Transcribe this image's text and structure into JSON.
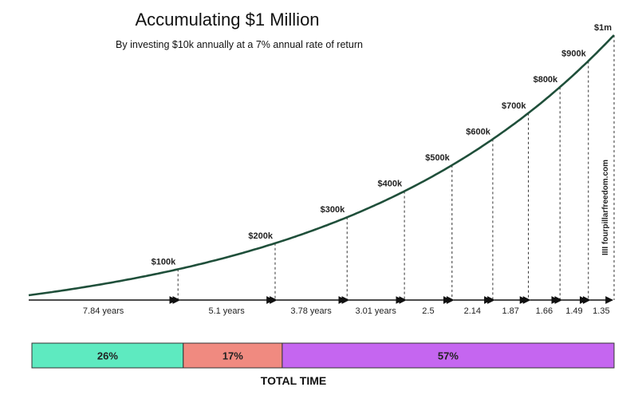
{
  "page": {
    "title": "Accumulating $1 Million",
    "subtitle": "By investing $10k annually at a 7% annual rate of return",
    "watermark": "IIII fourpillarfreedom.com"
  },
  "chart_data": {
    "type": "line",
    "title": "Accumulating $1 Million",
    "subtitle": "By investing $10k annually at a 7% annual rate of return",
    "annual_investment": 10000,
    "annual_return": 0.07,
    "milestones": [
      {
        "label": "$100k",
        "value": 100000,
        "years": 7.84,
        "duration_label": "7.84 years"
      },
      {
        "label": "$200k",
        "value": 200000,
        "years": 12.94,
        "duration_label": "5.1 years"
      },
      {
        "label": "$300k",
        "value": 300000,
        "years": 16.72,
        "duration_label": "3.78 years"
      },
      {
        "label": "$400k",
        "value": 400000,
        "years": 19.73,
        "duration_label": "3.01 years"
      },
      {
        "label": "$500k",
        "value": 500000,
        "years": 22.23,
        "duration_label": "2.5"
      },
      {
        "label": "$600k",
        "value": 600000,
        "years": 24.37,
        "duration_label": "2.14"
      },
      {
        "label": "$700k",
        "value": 700000,
        "years": 26.24,
        "duration_label": "1.87"
      },
      {
        "label": "$800k",
        "value": 800000,
        "years": 27.9,
        "duration_label": "1.66"
      },
      {
        "label": "$900k",
        "value": 900000,
        "years": 29.39,
        "duration_label": "1.49"
      },
      {
        "label": "$1m",
        "value": 1000000,
        "years": 30.74,
        "duration_label": "1.35"
      }
    ],
    "time_breakdown": {
      "label": "TOTAL TIME",
      "segments": [
        {
          "label": "26%",
          "value": 26,
          "color": "#5eeac0"
        },
        {
          "label": "17%",
          "value": 17,
          "color": "#f08a80"
        },
        {
          "label": "57%",
          "value": 57,
          "color": "#c566f0"
        }
      ]
    },
    "colors": {
      "curve": "#1f4f3a",
      "dashes": "#333333",
      "arrows": "#111111"
    }
  }
}
